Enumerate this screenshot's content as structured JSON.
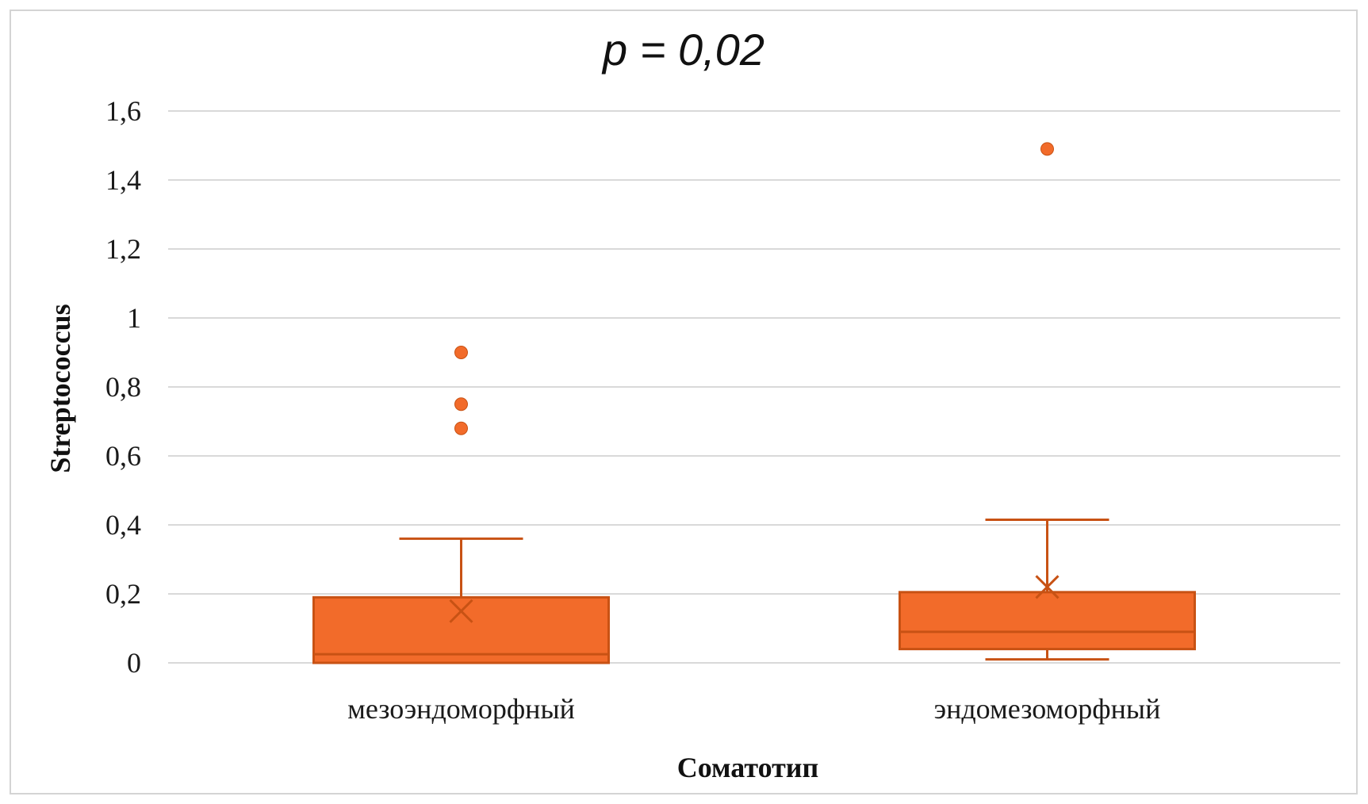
{
  "chart_data": {
    "type": "box",
    "title": "p = 0,02",
    "xlabel": "Соматотип",
    "ylabel": "Streptococcus",
    "ylim": [
      0,
      1.6
    ],
    "yticks": [
      0,
      0.2,
      0.4,
      0.6,
      0.8,
      1,
      1.2,
      1.4,
      1.6
    ],
    "ytick_labels": [
      "0",
      "0,2",
      "0,4",
      "0,6",
      "0,8",
      "1",
      "1,2",
      "1,4",
      "1,6"
    ],
    "grid": true,
    "categories": [
      "мезоэндоморфный",
      "эндомезоморфный"
    ],
    "boxes": [
      {
        "category": "мезоэндоморфный",
        "min": 0,
        "q1": 0,
        "median": 0.025,
        "q3": 0.19,
        "max": 0.36,
        "mean": 0.15,
        "outliers": [
          0.9,
          0.75,
          0.68
        ]
      },
      {
        "category": "эндомезоморфный",
        "min": 0.01,
        "q1": 0.04,
        "median": 0.09,
        "q3": 0.205,
        "max": 0.415,
        "mean": 0.22,
        "outliers": [
          1.49
        ]
      }
    ],
    "colors": {
      "fill": "#f26b2a",
      "stroke": "#c85214",
      "grid": "#d9d9d9"
    }
  }
}
